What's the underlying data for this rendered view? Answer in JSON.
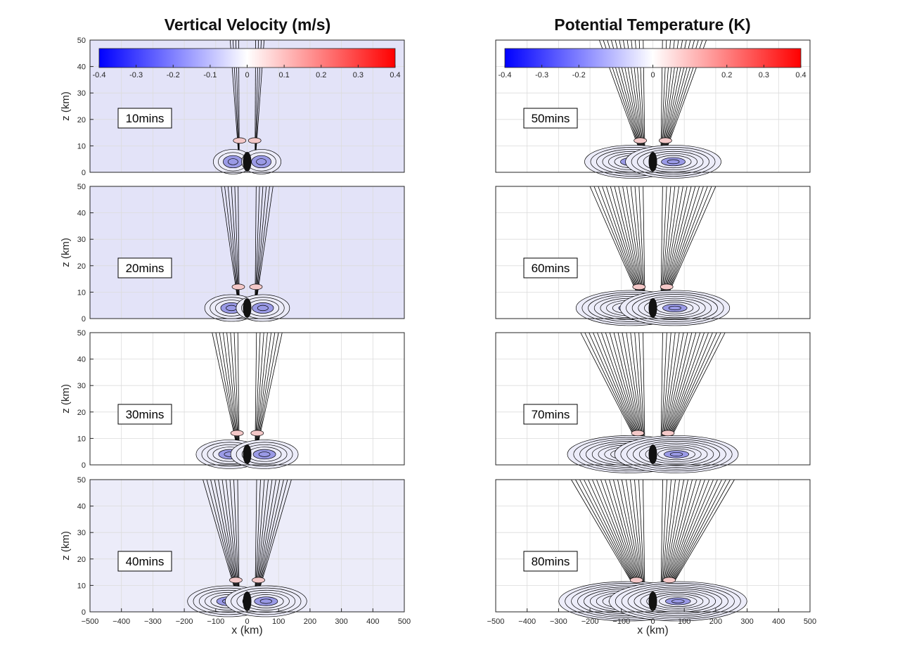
{
  "figure": {
    "columns": [
      {
        "title": "Vertical Velocity (m/s)"
      },
      {
        "title": "Potential Temperature (K)"
      }
    ],
    "colors": {
      "negative": "#0000ff",
      "zero": "#ffffff",
      "positive": "#ff0000",
      "contour": "#000000",
      "grid": "#dcdcdc"
    }
  },
  "chart_data": [
    {
      "type": "heatmap",
      "title": "Vertical Velocity (m/s)",
      "annotation": "10mins",
      "xlabel": "",
      "ylabel": "z (km)",
      "xlim": [
        -500,
        500
      ],
      "ylim": [
        0,
        50
      ],
      "xticks": [],
      "yticks": [
        0,
        10,
        20,
        30,
        40,
        50
      ],
      "grid": true,
      "colorbar": {
        "location": "top-inside",
        "range": [
          -0.4,
          0.4
        ],
        "ticks": [
          "-0.4",
          "-0.3",
          "-0.2",
          "-0.1",
          "0",
          "0.1",
          "0.2",
          "0.3",
          "0.4"
        ],
        "colors": [
          "#0000ff",
          "#ffffff",
          "#ff0000"
        ]
      }
    },
    {
      "type": "heatmap",
      "title": "Potential Temperature (K)",
      "annotation": "50mins",
      "xlabel": "",
      "ylabel": "",
      "xlim": [
        -500,
        500
      ],
      "ylim": [
        0,
        50
      ],
      "xticks": [],
      "yticks": [],
      "grid": true,
      "colorbar": {
        "location": "top-inside",
        "range": [
          -0.4,
          0.4
        ],
        "ticks": [
          "-0.4",
          "-0.3",
          "-0.2",
          "0",
          "0.2",
          "0.3",
          "0.4"
        ],
        "colors": [
          "#0000ff",
          "#ffffff",
          "#ff0000"
        ]
      }
    },
    {
      "type": "heatmap",
      "title": "",
      "annotation": "20mins",
      "xlabel": "",
      "ylabel": "z (km)",
      "xlim": [
        -500,
        500
      ],
      "ylim": [
        0,
        50
      ],
      "xticks": [],
      "yticks": [
        0,
        10,
        20,
        30,
        40,
        50
      ],
      "grid": true
    },
    {
      "type": "heatmap",
      "title": "",
      "annotation": "60mins",
      "xlabel": "",
      "ylabel": "",
      "xlim": [
        -500,
        500
      ],
      "ylim": [
        0,
        50
      ],
      "xticks": [],
      "yticks": [],
      "grid": true
    },
    {
      "type": "heatmap",
      "title": "",
      "annotation": "30mins",
      "xlabel": "",
      "ylabel": "z (km)",
      "xlim": [
        -500,
        500
      ],
      "ylim": [
        0,
        50
      ],
      "xticks": [],
      "yticks": [
        0,
        10,
        20,
        30,
        40,
        50
      ],
      "grid": true
    },
    {
      "type": "heatmap",
      "title": "",
      "annotation": "70mins",
      "xlabel": "",
      "ylabel": "",
      "xlim": [
        -500,
        500
      ],
      "ylim": [
        0,
        50
      ],
      "xticks": [],
      "yticks": [],
      "grid": true
    },
    {
      "type": "heatmap",
      "title": "",
      "annotation": "40mins",
      "xlabel": "x (km)",
      "ylabel": "z (km)",
      "xlim": [
        -500,
        500
      ],
      "ylim": [
        0,
        50
      ],
      "xticks": [
        -500,
        -400,
        -300,
        -200,
        -100,
        0,
        100,
        200,
        300,
        400,
        500
      ],
      "yticks": [
        0,
        10,
        20,
        30,
        40,
        50
      ],
      "grid": true
    },
    {
      "type": "heatmap",
      "title": "",
      "annotation": "80mins",
      "xlabel": "x (km)",
      "ylabel": "",
      "xlim": [
        -500,
        500
      ],
      "ylim": [
        0,
        50
      ],
      "xticks": [
        -500,
        -400,
        -300,
        -200,
        -100,
        0,
        100,
        200,
        300,
        400,
        500
      ],
      "yticks": [],
      "grid": true
    }
  ]
}
